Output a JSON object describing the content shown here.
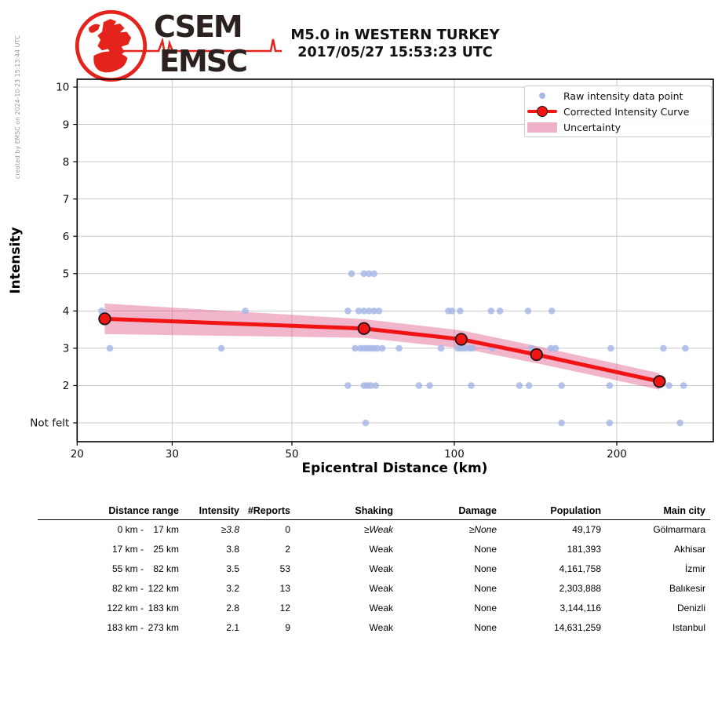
{
  "credit": "created by EMSC on 2024-10-23 15:13:44 UTC",
  "logo": {
    "line1": "CSEM",
    "line2": "EMSC"
  },
  "title": {
    "line1": "M5.0 in WESTERN TURKEY",
    "line2": "2017/05/27 15:53:23 UTC"
  },
  "chart_data": {
    "type": "scatter",
    "title": "M5.0 in WESTERN TURKEY",
    "subtitle": "2017/05/27 15:53:23 UTC",
    "xlabel": "Epicentral Distance (km)",
    "ylabel": "Intensity",
    "x_scale": "log",
    "x_range_km": [
      20,
      300
    ],
    "y_range": [
      "Not felt",
      10
    ],
    "grid": true,
    "legend_position": "upper right",
    "x_ticks": [
      {
        "v": 20,
        "label": "20"
      },
      {
        "v": 30,
        "label": "30"
      },
      {
        "v": 50,
        "label": "50"
      },
      {
        "v": 100,
        "label": "100"
      },
      {
        "v": 200,
        "label": "200"
      }
    ],
    "y_ticks": [
      {
        "v": 10,
        "label": "10"
      },
      {
        "v": 9,
        "label": "9"
      },
      {
        "v": 8,
        "label": "8"
      },
      {
        "v": 7,
        "label": "7"
      },
      {
        "v": 6,
        "label": "6"
      },
      {
        "v": 5,
        "label": "5"
      },
      {
        "v": 4,
        "label": "4"
      },
      {
        "v": 3,
        "label": "3"
      },
      {
        "v": 2,
        "label": "2"
      },
      {
        "v": 1,
        "label": "Not felt"
      }
    ],
    "legend": [
      "Raw intensity data point",
      "Corrected Intensity Curve",
      "Uncertainty"
    ],
    "raw_points": [
      {
        "intensity": 5,
        "distances_km": [
          64.5,
          68,
          69.5,
          71
        ]
      },
      {
        "intensity": 4,
        "distances_km": [
          22.2,
          41,
          63.5,
          66.5,
          68,
          69.5,
          71,
          72.5,
          97.5,
          99,
          102.5,
          117,
          121.5,
          137,
          151.5
        ]
      },
      {
        "intensity": 3,
        "distances_km": [
          23,
          37,
          65.5,
          67,
          68,
          69,
          70,
          71,
          72,
          73.5,
          79,
          94.5,
          101.5,
          103,
          104.5,
          106.5,
          108,
          117.5,
          139,
          151,
          154,
          195,
          244,
          268
        ]
      },
      {
        "intensity": 2,
        "distances_km": [
          63.5,
          68,
          69,
          70,
          71.5,
          86,
          90,
          107.5,
          132,
          137.5,
          158,
          194,
          250,
          266
        ]
      },
      {
        "intensity": 1,
        "label": "Not felt",
        "distances_km": [
          68.5,
          158,
          194,
          262
        ]
      }
    ],
    "corrected_curve": [
      {
        "distance_km": 22.5,
        "intensity": 3.79
      },
      {
        "distance_km": 68,
        "intensity": 3.53
      },
      {
        "distance_km": 103,
        "intensity": 3.24
      },
      {
        "distance_km": 142,
        "intensity": 2.83
      },
      {
        "distance_km": 240,
        "intensity": 2.11
      }
    ],
    "uncertainty_halfwidth": [
      0.41,
      0.25,
      0.24,
      0.23,
      0.22
    ],
    "colors": {
      "raw_point": "#a8b8e6",
      "curve": "#f11414",
      "curve_edge": "#141414",
      "uncertainty_band": "#e05c8d",
      "uncertainty_legend": "#efb0ca",
      "grid": "#c9c9c9",
      "logo_red": "#e3231c",
      "logo_text": "#2b2220"
    }
  },
  "table": {
    "columns": [
      "Distance range",
      "Intensity",
      "#Reports",
      "Shaking",
      "Damage",
      "Population",
      "Main city"
    ],
    "rows": [
      {
        "range_a": "0 km -",
        "range_b": "17 km",
        "intensity": "≥3.8",
        "reports": "0",
        "shaking": "≥Weak",
        "damage": "≥None",
        "population": "49,179",
        "city": "Gölmarmara"
      },
      {
        "range_a": "17 km -",
        "range_b": "25 km",
        "intensity": "3.8",
        "reports": "2",
        "shaking": "Weak",
        "damage": "None",
        "population": "181,393",
        "city": "Akhisar"
      },
      {
        "range_a": "55 km -",
        "range_b": "82 km",
        "intensity": "3.5",
        "reports": "53",
        "shaking": "Weak",
        "damage": "None",
        "population": "4,161,758",
        "city": "İzmir"
      },
      {
        "range_a": "82 km -",
        "range_b": "122 km",
        "intensity": "3.2",
        "reports": "13",
        "shaking": "Weak",
        "damage": "None",
        "population": "2,303,888",
        "city": "Balıkesir"
      },
      {
        "range_a": "122 km -",
        "range_b": "183 km",
        "intensity": "2.8",
        "reports": "12",
        "shaking": "Weak",
        "damage": "None",
        "population": "3,144,116",
        "city": "Denizli"
      },
      {
        "range_a": "183 km -",
        "range_b": "273 km",
        "intensity": "2.1",
        "reports": "9",
        "shaking": "Weak",
        "damage": "None",
        "population": "14,631,259",
        "city": "Istanbul"
      }
    ]
  }
}
